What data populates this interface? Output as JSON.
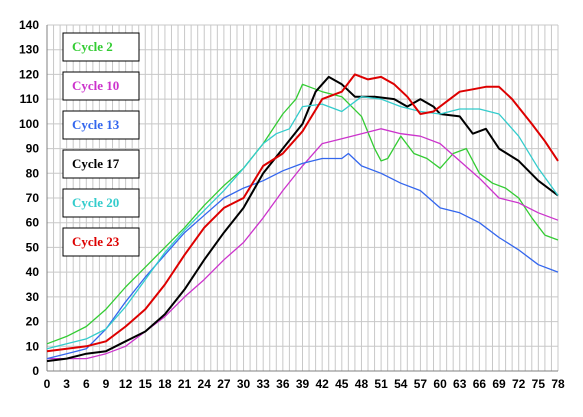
{
  "chart_data": {
    "type": "line",
    "title": "",
    "xlabel": "",
    "ylabel": "",
    "xlim": [
      0,
      78
    ],
    "ylim": [
      0,
      140
    ],
    "x_tick_step": 3,
    "y_tick_step": 10,
    "grid": true,
    "legend_position": "left",
    "series": [
      {
        "name": "Cycle 2",
        "color": "#33cc33",
        "points": [
          [
            0,
            11
          ],
          [
            3,
            14
          ],
          [
            6,
            18
          ],
          [
            9,
            25
          ],
          [
            12,
            34
          ],
          [
            15,
            42
          ],
          [
            18,
            50
          ],
          [
            21,
            58
          ],
          [
            24,
            67
          ],
          [
            27,
            75
          ],
          [
            30,
            82
          ],
          [
            33,
            92
          ],
          [
            36,
            104
          ],
          [
            38,
            110
          ],
          [
            39,
            116
          ],
          [
            42,
            113
          ],
          [
            45,
            111
          ],
          [
            48,
            103
          ],
          [
            50,
            90
          ],
          [
            51,
            85
          ],
          [
            52,
            86
          ],
          [
            54,
            95
          ],
          [
            56,
            88
          ],
          [
            58,
            86
          ],
          [
            60,
            82
          ],
          [
            62,
            88
          ],
          [
            64,
            90
          ],
          [
            66,
            80
          ],
          [
            68,
            76
          ],
          [
            70,
            74
          ],
          [
            72,
            70
          ],
          [
            74,
            62
          ],
          [
            76,
            55
          ],
          [
            78,
            53
          ]
        ]
      },
      {
        "name": "Cycle 10",
        "color": "#cc33cc",
        "points": [
          [
            0,
            5
          ],
          [
            3,
            5
          ],
          [
            6,
            5
          ],
          [
            9,
            7
          ],
          [
            12,
            10
          ],
          [
            15,
            16
          ],
          [
            18,
            22
          ],
          [
            21,
            30
          ],
          [
            24,
            37
          ],
          [
            27,
            45
          ],
          [
            30,
            52
          ],
          [
            33,
            62
          ],
          [
            36,
            73
          ],
          [
            39,
            83
          ],
          [
            42,
            92
          ],
          [
            45,
            94
          ],
          [
            48,
            96
          ],
          [
            51,
            98
          ],
          [
            54,
            96
          ],
          [
            57,
            95
          ],
          [
            60,
            92
          ],
          [
            63,
            85
          ],
          [
            66,
            78
          ],
          [
            69,
            70
          ],
          [
            72,
            68
          ],
          [
            75,
            64
          ],
          [
            78,
            61
          ]
        ]
      },
      {
        "name": "Cycle 13",
        "color": "#3366ee",
        "points": [
          [
            0,
            5
          ],
          [
            3,
            7
          ],
          [
            6,
            9
          ],
          [
            9,
            17
          ],
          [
            12,
            28
          ],
          [
            15,
            38
          ],
          [
            18,
            47
          ],
          [
            21,
            56
          ],
          [
            24,
            63
          ],
          [
            27,
            70
          ],
          [
            30,
            74
          ],
          [
            33,
            77
          ],
          [
            36,
            81
          ],
          [
            39,
            84
          ],
          [
            42,
            86
          ],
          [
            45,
            86
          ],
          [
            46,
            88
          ],
          [
            48,
            83
          ],
          [
            51,
            80
          ],
          [
            54,
            76
          ],
          [
            57,
            73
          ],
          [
            60,
            66
          ],
          [
            63,
            64
          ],
          [
            66,
            60
          ],
          [
            69,
            54
          ],
          [
            72,
            49
          ],
          [
            75,
            43
          ],
          [
            78,
            40
          ]
        ]
      },
      {
        "name": "Cycle 17",
        "color": "#000000",
        "points": [
          [
            0,
            4
          ],
          [
            3,
            5
          ],
          [
            6,
            7
          ],
          [
            9,
            8
          ],
          [
            12,
            12
          ],
          [
            15,
            16
          ],
          [
            18,
            23
          ],
          [
            21,
            33
          ],
          [
            24,
            45
          ],
          [
            27,
            56
          ],
          [
            30,
            66
          ],
          [
            33,
            80
          ],
          [
            36,
            90
          ],
          [
            39,
            100
          ],
          [
            41,
            113
          ],
          [
            43,
            119
          ],
          [
            45,
            116
          ],
          [
            47,
            111
          ],
          [
            50,
            111
          ],
          [
            53,
            110
          ],
          [
            55,
            107
          ],
          [
            57,
            110
          ],
          [
            59,
            107
          ],
          [
            60,
            104
          ],
          [
            63,
            103
          ],
          [
            65,
            96
          ],
          [
            67,
            98
          ],
          [
            69,
            90
          ],
          [
            72,
            85
          ],
          [
            75,
            77
          ],
          [
            78,
            71
          ]
        ]
      },
      {
        "name": "Cycle 20",
        "color": "#33cccc",
        "points": [
          [
            0,
            9
          ],
          [
            3,
            11
          ],
          [
            6,
            13
          ],
          [
            9,
            17
          ],
          [
            12,
            26
          ],
          [
            15,
            37
          ],
          [
            18,
            48
          ],
          [
            21,
            57
          ],
          [
            24,
            65
          ],
          [
            27,
            73
          ],
          [
            30,
            82
          ],
          [
            33,
            92
          ],
          [
            35,
            96
          ],
          [
            37,
            98
          ],
          [
            39,
            107
          ],
          [
            42,
            108
          ],
          [
            45,
            105
          ],
          [
            48,
            111
          ],
          [
            51,
            110
          ],
          [
            54,
            107
          ],
          [
            57,
            105
          ],
          [
            60,
            104
          ],
          [
            63,
            106
          ],
          [
            66,
            106
          ],
          [
            69,
            104
          ],
          [
            72,
            95
          ],
          [
            75,
            82
          ],
          [
            78,
            71
          ]
        ]
      },
      {
        "name": "Cycle 23",
        "color": "#dd0000",
        "points": [
          [
            0,
            8
          ],
          [
            3,
            9
          ],
          [
            6,
            10
          ],
          [
            9,
            12
          ],
          [
            12,
            18
          ],
          [
            15,
            25
          ],
          [
            18,
            35
          ],
          [
            21,
            47
          ],
          [
            24,
            58
          ],
          [
            27,
            66
          ],
          [
            30,
            70
          ],
          [
            33,
            83
          ],
          [
            36,
            88
          ],
          [
            39,
            97
          ],
          [
            42,
            110
          ],
          [
            45,
            113
          ],
          [
            47,
            120
          ],
          [
            49,
            118
          ],
          [
            51,
            119
          ],
          [
            53,
            116
          ],
          [
            55,
            111
          ],
          [
            57,
            104
          ],
          [
            59,
            105
          ],
          [
            61,
            109
          ],
          [
            63,
            113
          ],
          [
            65,
            114
          ],
          [
            67,
            115
          ],
          [
            69,
            115
          ],
          [
            71,
            110
          ],
          [
            74,
            100
          ],
          [
            76,
            93
          ],
          [
            78,
            85
          ]
        ]
      }
    ]
  }
}
